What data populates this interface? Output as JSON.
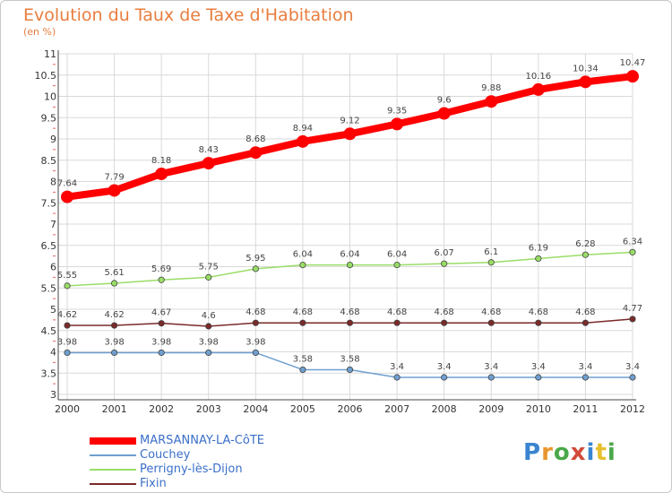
{
  "title": "Evolution du Taux de Taxe d'Habitation",
  "subtitle": "(en %)",
  "colors": {
    "title": "#e87d3e",
    "legend_text": "#3b6fc9",
    "grid": "#d9d9d9"
  },
  "legend": [
    {
      "name": "MARSANNAY-LA-CôTE",
      "color": "#ff0000"
    },
    {
      "name": "Couchey",
      "color": "#6f9fd0"
    },
    {
      "name": "Perrigny-lès-Dijon",
      "color": "#99dd66"
    },
    {
      "name": "Fixin",
      "color": "#7a2a2a"
    }
  ],
  "logo": {
    "letters": [
      "P",
      "r",
      "o",
      "x",
      "i",
      "t",
      "i"
    ]
  },
  "chart_data": {
    "type": "line",
    "title": "Evolution du Taux de Taxe d'Habitation",
    "subtitle": "(en %)",
    "x": [
      2000,
      2001,
      2002,
      2003,
      2004,
      2005,
      2006,
      2007,
      2008,
      2009,
      2010,
      2011,
      2012
    ],
    "xtick_labels": [
      "2000",
      "2001",
      "2002",
      "2003",
      "2004",
      "2005",
      "2006",
      "2007",
      "2008",
      "2009",
      "2010",
      "2011",
      "2012"
    ],
    "ylim": [
      3,
      11
    ],
    "yticks": [
      3,
      3.5,
      4,
      4.5,
      5,
      5.5,
      6,
      6.5,
      7,
      7.5,
      8,
      8.5,
      9,
      9.5,
      10,
      10.5,
      11
    ],
    "ytick_labels": [
      "3",
      "3.5",
      "4",
      "4.5",
      "5",
      "5.5",
      "6",
      "6.5",
      "7",
      "7.5",
      "8",
      "8.5",
      "9",
      "9.5",
      "10",
      "10.5",
      "11"
    ],
    "grid": true,
    "legend_position": "bottom-left",
    "series": [
      {
        "name": "MARSANNAY-LA-CôTE",
        "color": "#ff0000",
        "style": "thick",
        "values": [
          7.64,
          7.79,
          8.18,
          8.43,
          8.68,
          8.94,
          9.12,
          9.35,
          9.6,
          9.88,
          10.16,
          10.34,
          10.47
        ],
        "labels": [
          "7.64",
          "7.79",
          "8.18",
          "8.43",
          "8.68",
          "8.94",
          "9.12",
          "9.35",
          "9.6",
          "9.88",
          "10.16",
          "10.34",
          "10.47"
        ]
      },
      {
        "name": "Perrigny-lès-Dijon",
        "color": "#99dd66",
        "style": "thin",
        "values": [
          5.55,
          5.61,
          5.69,
          5.75,
          5.95,
          6.04,
          6.04,
          6.04,
          6.07,
          6.1,
          6.19,
          6.28,
          6.34
        ],
        "labels": [
          "5.55",
          "5.61",
          "5.69",
          "5.75",
          "5.95",
          "6.04",
          "6.04",
          "6.04",
          "6.07",
          "6.1",
          "6.19",
          "6.28",
          "6.34"
        ]
      },
      {
        "name": "Fixin",
        "color": "#7a2a2a",
        "style": "thin",
        "values": [
          4.62,
          4.62,
          4.67,
          4.6,
          4.68,
          4.68,
          4.68,
          4.68,
          4.68,
          4.68,
          4.68,
          4.68,
          4.77
        ],
        "labels": [
          "4.62",
          "4.62",
          "4.67",
          "4.6",
          "4.68",
          "4.68",
          "4.68",
          "4.68",
          "4.68",
          "4.68",
          "4.68",
          "4.68",
          "4.77"
        ]
      },
      {
        "name": "Couchey",
        "color": "#6f9fd0",
        "style": "thin",
        "values": [
          3.98,
          3.98,
          3.98,
          3.98,
          3.98,
          3.58,
          3.58,
          3.4,
          3.4,
          3.4,
          3.4,
          3.4,
          3.4
        ],
        "labels": [
          "3.98",
          "3.98",
          "3.98",
          "3.98",
          "3.98",
          "3.58",
          "3.58",
          "3.4",
          "3.4",
          "3.4",
          "3.4",
          "3.4",
          "3.4"
        ]
      }
    ]
  }
}
